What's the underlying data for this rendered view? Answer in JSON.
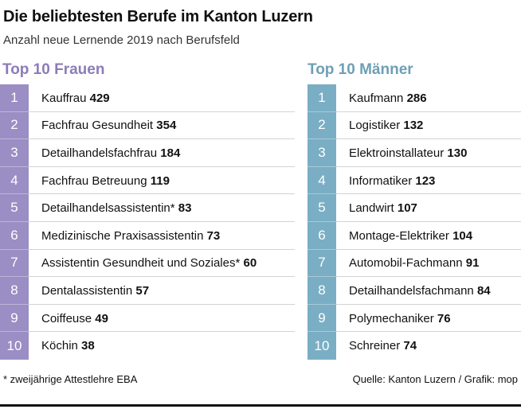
{
  "header": {
    "title": "Die beliebtesten Berufe im Kanton Luzern",
    "subtitle": "Anzahl neue Lernende 2019 nach Berufsfeld"
  },
  "women": {
    "heading": "Top 10 Frauen",
    "color": "#9b8ec4"
  },
  "men": {
    "heading": "Top 10 Männer",
    "color": "#7aaec4"
  },
  "chart_data": {
    "type": "table",
    "title": "Die beliebtesten Berufe im Kanton Luzern",
    "subtitle": "Anzahl neue Lernende 2019 nach Berufsfeld",
    "tables": [
      {
        "name": "Top 10 Frauen",
        "rows": [
          {
            "rank": "1",
            "name": "Kauffrau",
            "value": 429
          },
          {
            "rank": "2",
            "name": "Fachfrau Gesundheit",
            "value": 354
          },
          {
            "rank": "3",
            "name": "Detailhandelsfachfrau",
            "value": 184
          },
          {
            "rank": "4",
            "name": "Fachfrau Betreuung",
            "value": 119
          },
          {
            "rank": "5",
            "name": "Detailhandelsassistentin*",
            "value": 83
          },
          {
            "rank": "6",
            "name": "Medizinische Praxisassistentin",
            "value": 73
          },
          {
            "rank": "7",
            "name": "Assistentin Gesundheit und Soziales*",
            "value": 60
          },
          {
            "rank": "8",
            "name": "Dentalassistentin",
            "value": 57
          },
          {
            "rank": "9",
            "name": "Coiffeuse",
            "value": 49
          },
          {
            "rank": "10",
            "name": "Köchin",
            "value": 38
          }
        ]
      },
      {
        "name": "Top 10 Männer",
        "rows": [
          {
            "rank": "1",
            "name": "Kaufmann",
            "value": 286
          },
          {
            "rank": "2",
            "name": "Logistiker",
            "value": 132
          },
          {
            "rank": "3",
            "name": "Elektroinstallateur",
            "value": 130
          },
          {
            "rank": "4",
            "name": "Informatiker",
            "value": 123
          },
          {
            "rank": "5",
            "name": "Landwirt",
            "value": 107
          },
          {
            "rank": "6",
            "name": "Montage-Elektriker",
            "value": 104
          },
          {
            "rank": "7",
            "name": "Automobil-Fachmann",
            "value": 91
          },
          {
            "rank": "8",
            "name": "Detailhandelsfachmann",
            "value": 84
          },
          {
            "rank": "9",
            "name": "Polymechaniker",
            "value": 76
          },
          {
            "rank": "10",
            "name": "Schreiner",
            "value": 74
          }
        ]
      }
    ]
  },
  "footer": {
    "footnote": "* zweijährige Attestlehre EBA",
    "source": "Quelle: Kanton Luzern / Grafik: mop"
  }
}
